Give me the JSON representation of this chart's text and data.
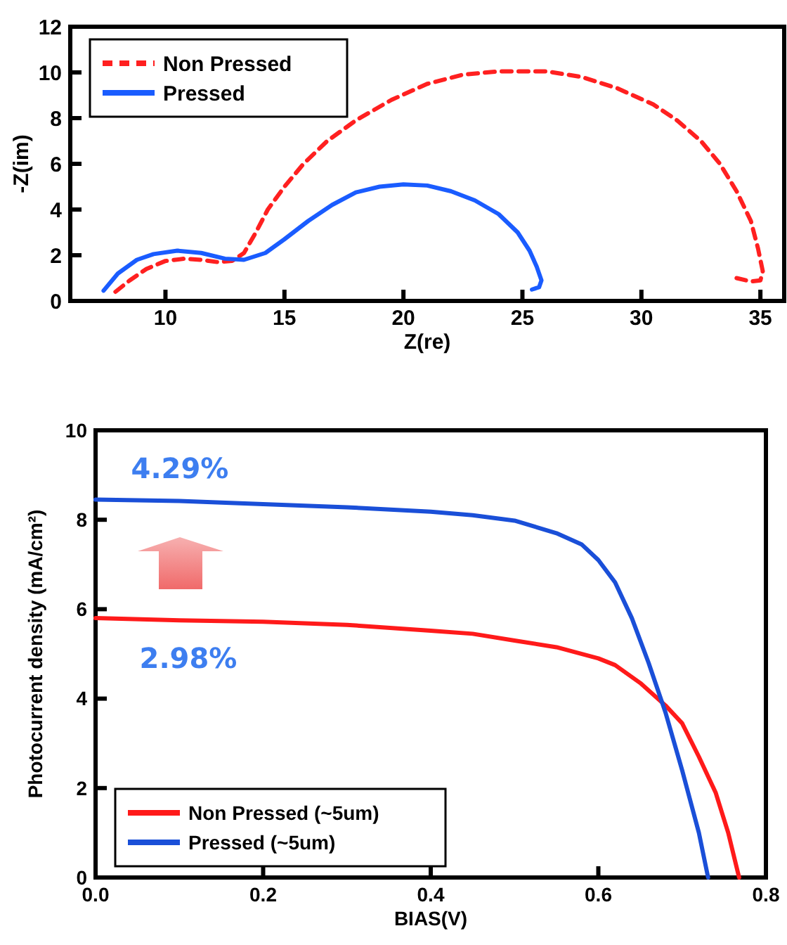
{
  "chart_data": [
    {
      "type": "line",
      "xlabel": "Z(re)",
      "ylabel": "-Z(im)",
      "xlim": [
        6,
        36
      ],
      "ylim": [
        0,
        12
      ],
      "xticks": [
        10,
        15,
        20,
        25,
        30,
        35
      ],
      "yticks": [
        0,
        2,
        4,
        6,
        8,
        10,
        12
      ],
      "legend": "top left",
      "grid": false,
      "series": [
        {
          "name": "Non Pressed",
          "color": "#ff2020",
          "line_style": "dashed",
          "x": [
            7.9,
            8.5,
            9.2,
            10,
            10.8,
            11.5,
            12.2,
            12.8,
            13.3,
            13.8,
            14.3,
            15,
            15.8,
            16.8,
            18,
            19.5,
            21,
            22.5,
            24,
            26,
            27.5,
            29,
            30.5,
            31.5,
            32.5,
            33.3,
            34,
            34.6,
            34.9,
            35.1,
            35,
            34.6,
            34.4,
            34
          ],
          "values": [
            0.4,
            0.9,
            1.4,
            1.75,
            1.85,
            1.8,
            1.7,
            1.75,
            2.1,
            3,
            4,
            5,
            6,
            7,
            7.9,
            8.8,
            9.5,
            9.9,
            10.05,
            10.05,
            9.8,
            9.3,
            8.6,
            7.9,
            7,
            6,
            4.8,
            3.5,
            2.3,
            1.3,
            0.9,
            0.85,
            0.9,
            1
          ]
        },
        {
          "name": "Pressed",
          "color": "#1a5cff",
          "line_style": "solid",
          "x": [
            7.4,
            8,
            8.8,
            9.5,
            10.5,
            11.5,
            12.5,
            13.3,
            14.2,
            15,
            16,
            17,
            18,
            19,
            20,
            21,
            22,
            23,
            24,
            24.8,
            25.3,
            25.6,
            25.8,
            25.7,
            25.4
          ],
          "values": [
            0.45,
            1.2,
            1.8,
            2.05,
            2.2,
            2.1,
            1.85,
            1.8,
            2.1,
            2.7,
            3.5,
            4.2,
            4.75,
            5,
            5.1,
            5.05,
            4.8,
            4.4,
            3.8,
            3,
            2.2,
            1.5,
            0.9,
            0.6,
            0.5
          ]
        }
      ]
    },
    {
      "type": "line",
      "xlabel": "BIAS(V)",
      "ylabel": "Photocurrent density (mA/cm²)",
      "xlim": [
        0,
        0.8
      ],
      "ylim": [
        0,
        10
      ],
      "xticks": [
        {
          "value": 0,
          "label": "0.0"
        },
        0.2,
        0.4,
        0.6,
        0.8
      ],
      "yticks": [
        0,
        2,
        4,
        6,
        8,
        10
      ],
      "legend": "bottom left",
      "grid": false,
      "annotations": [
        "4.29%",
        "2.98%"
      ],
      "series": [
        {
          "name": "Non Pressed (~5um)",
          "color": "#ff1a1a",
          "line_style": "solid",
          "x": [
            0,
            0.1,
            0.2,
            0.3,
            0.4,
            0.45,
            0.5,
            0.55,
            0.6,
            0.62,
            0.65,
            0.68,
            0.7,
            0.72,
            0.74,
            0.755,
            0.768
          ],
          "values": [
            5.8,
            5.75,
            5.72,
            5.65,
            5.52,
            5.45,
            5.3,
            5.15,
            4.9,
            4.75,
            4.35,
            3.85,
            3.45,
            2.7,
            1.9,
            1,
            0
          ]
        },
        {
          "name": "Pressed (~5um)",
          "color": "#1a4fd8",
          "line_style": "solid",
          "x": [
            0,
            0.1,
            0.2,
            0.3,
            0.4,
            0.45,
            0.5,
            0.55,
            0.58,
            0.6,
            0.62,
            0.64,
            0.66,
            0.68,
            0.7,
            0.72,
            0.731
          ],
          "values": [
            8.45,
            8.42,
            8.35,
            8.28,
            8.18,
            8.1,
            7.98,
            7.7,
            7.45,
            7.1,
            6.6,
            5.8,
            4.8,
            3.7,
            2.4,
            1,
            0
          ]
        }
      ]
    }
  ]
}
